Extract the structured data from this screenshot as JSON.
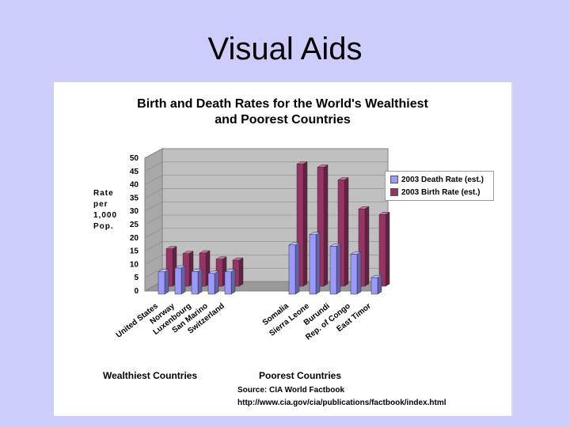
{
  "slide": {
    "title": "Visual Aids"
  },
  "chart_data": {
    "type": "bar",
    "title_line1": "Birth and Death Rates for the World's Wealthiest",
    "title_line2": "and Poorest Countries",
    "ylabel_lines": [
      "Rate",
      "per",
      "1,000",
      "Pop."
    ],
    "ylim": [
      0,
      50
    ],
    "yticks": [
      0,
      5,
      10,
      15,
      20,
      25,
      30,
      35,
      40,
      45,
      50
    ],
    "categories": [
      "United States",
      "Norway",
      "Luxenbourg",
      "San Marino",
      "Switzerland",
      "Somalia",
      "Sierra Leone",
      "Burundi",
      "Rep. of Congo",
      "East Timor"
    ],
    "series": [
      {
        "name": "2003 Death Rate (est.)",
        "values": [
          8.4,
          9.8,
          8.5,
          7.8,
          8.4,
          18.5,
          22.4,
          18.0,
          15.0,
          6.2
        ]
      },
      {
        "name": "2003 Birth Rate (est.)",
        "values": [
          14.1,
          12.3,
          12.5,
          10.2,
          9.8,
          46.0,
          44.8,
          40.0,
          29.1,
          27.0
        ]
      }
    ],
    "colors": {
      "death": "#9999ff",
      "birth": "#993366"
    },
    "legend_position": "right",
    "group_labels": [
      "Wealthiest Countries",
      "Poorest Countries"
    ],
    "source_lines": [
      "Source: CIA World Factbook",
      "http://www.cia.gov/cia/publications/factbook/index.html"
    ]
  }
}
